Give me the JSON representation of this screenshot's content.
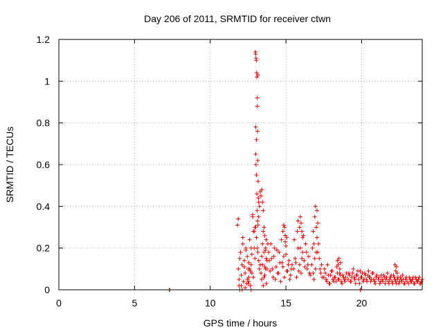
{
  "chart_data": {
    "type": "scatter",
    "title": "Day 206 of 2011, SRMTID for receiver ctwn",
    "xlabel": "GPS time / hours",
    "ylabel": "SRMTID / TECUs",
    "xlim": [
      0,
      24
    ],
    "ylim": [
      0,
      1.2
    ],
    "xticks": [
      0,
      5,
      10,
      15,
      20
    ],
    "xtick_labels": [
      "0",
      "5",
      "10",
      "15",
      "20"
    ],
    "yticks": [
      0,
      0.2,
      0.4,
      0.6,
      0.8,
      1,
      1.2
    ],
    "ytick_labels": [
      "0",
      "0.2",
      "0.4",
      "0.6",
      "0.8",
      "1",
      "1.2"
    ],
    "grid": true,
    "marker": "+",
    "color": "#e00000",
    "series": [
      {
        "name": "SRMTID",
        "x": [
          7.3,
          7.32,
          19.9,
          19.92,
          11.8,
          11.85,
          11.9,
          11.95,
          12.0,
          12.05,
          12.1,
          12.15,
          12.2,
          12.25,
          12.3,
          12.35,
          12.4,
          12.45,
          12.5,
          12.55,
          12.6,
          12.65,
          12.7,
          12.75,
          11.85,
          11.95,
          12.05,
          12.15,
          12.25,
          12.35,
          12.45,
          12.55,
          12.65,
          12.75,
          12.8,
          12.85,
          12.9,
          12.95,
          11.9,
          12.1,
          12.3,
          12.5,
          12.7,
          12.85,
          12.95,
          12.55,
          12.6,
          12.7,
          12.8,
          12.9,
          13.0,
          13.0,
          13.02,
          13.05,
          13.05,
          13.08,
          13.1,
          13.12,
          13.15,
          13.1,
          13.15,
          12.98,
          13.0,
          13.02,
          13.04,
          13.06,
          13.08,
          13.1,
          13.12,
          13.14,
          13.16,
          13.18,
          13.2,
          13.0,
          13.05,
          13.1,
          13.15,
          13.2,
          13.25,
          13.3,
          13.35,
          13.4,
          13.45,
          13.5,
          13.55,
          13.6,
          13.65,
          13.7,
          13.2,
          13.25,
          13.3,
          13.35,
          13.4,
          13.45,
          13.5,
          13.55,
          13.6,
          13.65,
          13.7,
          13.75,
          13.8,
          13.85,
          13.9,
          13.95,
          13.4,
          13.45,
          13.5,
          13.55,
          13.6,
          13.65,
          13.7,
          13.75,
          14.0,
          14.1,
          14.2,
          14.3,
          14.4,
          14.5,
          14.6,
          14.7,
          14.8,
          14.9,
          15.0,
          15.1,
          15.2,
          15.3,
          15.4,
          14.05,
          14.15,
          14.25,
          14.35,
          14.45,
          14.55,
          14.65,
          14.75,
          14.85,
          14.95,
          15.05,
          15.15,
          15.25,
          15.35,
          14.8,
          14.85,
          14.9,
          14.95,
          15.0,
          15.05,
          15.5,
          15.6,
          15.7,
          15.8,
          15.9,
          16.0,
          16.1,
          16.2,
          16.3,
          16.4,
          16.5,
          16.6,
          15.55,
          15.65,
          15.75,
          15.85,
          15.95,
          16.05,
          16.15,
          16.25,
          16.35,
          16.45,
          16.55,
          15.9,
          15.95,
          16.0,
          16.05,
          16.1,
          15.8,
          16.7,
          16.75,
          16.8,
          16.85,
          16.9,
          16.95,
          17.0,
          17.05,
          17.1,
          17.15,
          17.2,
          17.25,
          17.3,
          17.35,
          17.4,
          16.8,
          16.85,
          16.9,
          16.95,
          17.0,
          17.05,
          17.1,
          17.5,
          17.6,
          17.7,
          17.8,
          17.9,
          18.0,
          18.1,
          18.2,
          18.3,
          18.4,
          18.5,
          18.6,
          18.7,
          18.8,
          18.9,
          19.0,
          17.55,
          17.65,
          17.75,
          17.85,
          17.95,
          18.05,
          18.15,
          18.25,
          18.35,
          18.45,
          18.55,
          18.65,
          18.75,
          18.85,
          18.95,
          18.4,
          18.45,
          18.5,
          18.55,
          18.6,
          19.1,
          19.2,
          19.3,
          19.4,
          19.5,
          19.6,
          19.7,
          19.8,
          19.9,
          20.0,
          20.1,
          20.2,
          20.3,
          20.4,
          20.5,
          20.6,
          20.7,
          20.8,
          20.9,
          21.0,
          19.15,
          19.25,
          19.35,
          19.45,
          19.55,
          19.65,
          19.75,
          19.85,
          19.95,
          20.05,
          20.15,
          20.25,
          20.35,
          20.45,
          20.55,
          20.65,
          20.75,
          20.85,
          20.95,
          21.1,
          21.2,
          21.3,
          21.4,
          21.5,
          21.6,
          21.7,
          21.8,
          21.9,
          22.0,
          22.1,
          22.2,
          22.3,
          22.4,
          22.5,
          22.6,
          22.7,
          22.8,
          22.9,
          23.0,
          21.15,
          21.25,
          21.35,
          21.45,
          21.55,
          21.65,
          21.75,
          21.85,
          21.95,
          22.05,
          22.15,
          22.25,
          22.35,
          22.45,
          22.55,
          22.65,
          22.75,
          22.85,
          22.95,
          22.2,
          22.25,
          22.3,
          22.35,
          23.1,
          23.2,
          23.3,
          23.4,
          23.5,
          23.6,
          23.7,
          23.8,
          23.9,
          24.0,
          23.15,
          23.25,
          23.35,
          23.45,
          23.55,
          23.65,
          23.75,
          23.85,
          23.95
        ],
        "y": [
          0.0,
          0.0,
          0.0,
          0.0,
          0.31,
          0.1,
          0.05,
          0.0,
          0.18,
          0.02,
          0.12,
          0.22,
          0.04,
          0.14,
          0.08,
          0.2,
          0.03,
          0.16,
          0.1,
          0.06,
          0.24,
          0.02,
          0.12,
          0.08,
          0.34,
          0.15,
          0.07,
          0.25,
          0.11,
          0.19,
          0.05,
          0.13,
          0.09,
          0.17,
          0.36,
          0.28,
          0.2,
          0.3,
          0.02,
          0.0,
          0.01,
          0.03,
          0.0,
          0.06,
          0.15,
          0.04,
          0.1,
          0.2,
          0.35,
          0.28,
          0.78,
          0.65,
          0.6,
          0.72,
          0.55,
          0.46,
          0.38,
          0.33,
          0.31,
          0.92,
          1.03,
          1.14,
          1.13,
          1.11,
          1.1,
          1.04,
          1.02,
          0.88,
          0.76,
          0.62,
          0.52,
          0.44,
          0.42,
          0.3,
          0.25,
          0.2,
          0.18,
          0.14,
          0.1,
          0.12,
          0.08,
          0.16,
          0.22,
          0.28,
          0.06,
          0.11,
          0.19,
          0.24,
          0.35,
          0.4,
          0.47,
          0.45,
          0.48,
          0.42,
          0.38,
          0.3,
          0.26,
          0.2,
          0.15,
          0.1,
          0.22,
          0.18,
          0.14,
          0.09,
          0.05,
          0.12,
          0.02,
          0.18,
          0.07,
          0.1,
          0.03,
          0.14,
          0.22,
          0.1,
          0.16,
          0.05,
          0.19,
          0.08,
          0.13,
          0.24,
          0.11,
          0.06,
          0.17,
          0.09,
          0.14,
          0.07,
          0.12,
          0.15,
          0.06,
          0.2,
          0.11,
          0.08,
          0.18,
          0.04,
          0.13,
          0.16,
          0.23,
          0.09,
          0.12,
          0.05,
          0.1,
          0.28,
          0.31,
          0.3,
          0.26,
          0.21,
          0.25,
          0.1,
          0.15,
          0.06,
          0.2,
          0.12,
          0.08,
          0.18,
          0.14,
          0.22,
          0.1,
          0.16,
          0.07,
          0.24,
          0.13,
          0.28,
          0.09,
          0.2,
          0.15,
          0.26,
          0.11,
          0.18,
          0.12,
          0.08,
          0.3,
          0.35,
          0.32,
          0.28,
          0.25,
          0.33,
          0.12,
          0.2,
          0.28,
          0.22,
          0.35,
          0.4,
          0.3,
          0.25,
          0.18,
          0.22,
          0.15,
          0.1,
          0.08,
          0.12,
          0.06,
          0.08,
          0.05,
          0.15,
          0.1,
          0.18,
          0.38,
          0.32,
          0.06,
          0.08,
          0.04,
          0.07,
          0.03,
          0.09,
          0.05,
          0.06,
          0.04,
          0.08,
          0.05,
          0.07,
          0.03,
          0.06,
          0.04,
          0.08,
          0.1,
          0.05,
          0.12,
          0.03,
          0.07,
          0.09,
          0.04,
          0.06,
          0.11,
          0.05,
          0.08,
          0.04,
          0.07,
          0.05,
          0.06,
          0.14,
          0.12,
          0.15,
          0.1,
          0.13,
          0.05,
          0.07,
          0.04,
          0.08,
          0.06,
          0.03,
          0.07,
          0.05,
          0.09,
          0.06,
          0.04,
          0.08,
          0.05,
          0.07,
          0.06,
          0.04,
          0.08,
          0.05,
          0.03,
          0.07,
          0.08,
          0.04,
          0.06,
          0.1,
          0.05,
          0.07,
          0.09,
          0.03,
          0.06,
          0.08,
          0.05,
          0.07,
          0.04,
          0.09,
          0.06,
          0.05,
          0.08,
          0.04,
          0.06,
          0.05,
          0.03,
          0.07,
          0.04,
          0.06,
          0.05,
          0.08,
          0.03,
          0.06,
          0.04,
          0.07,
          0.05,
          0.03,
          0.06,
          0.04,
          0.05,
          0.07,
          0.03,
          0.05,
          0.04,
          0.06,
          0.04,
          0.05,
          0.07,
          0.03,
          0.06,
          0.04,
          0.05,
          0.07,
          0.03,
          0.06,
          0.04,
          0.05,
          0.03,
          0.06,
          0.04,
          0.05,
          0.03,
          0.06,
          0.12,
          0.09,
          0.11,
          0.08,
          0.03,
          0.05,
          0.04,
          0.06,
          0.03,
          0.05,
          0.04,
          0.06,
          0.03,
          0.05,
          0.06,
          0.04,
          0.05,
          0.03,
          0.06,
          0.04,
          0.05,
          0.03,
          0.04
        ]
      }
    ]
  }
}
